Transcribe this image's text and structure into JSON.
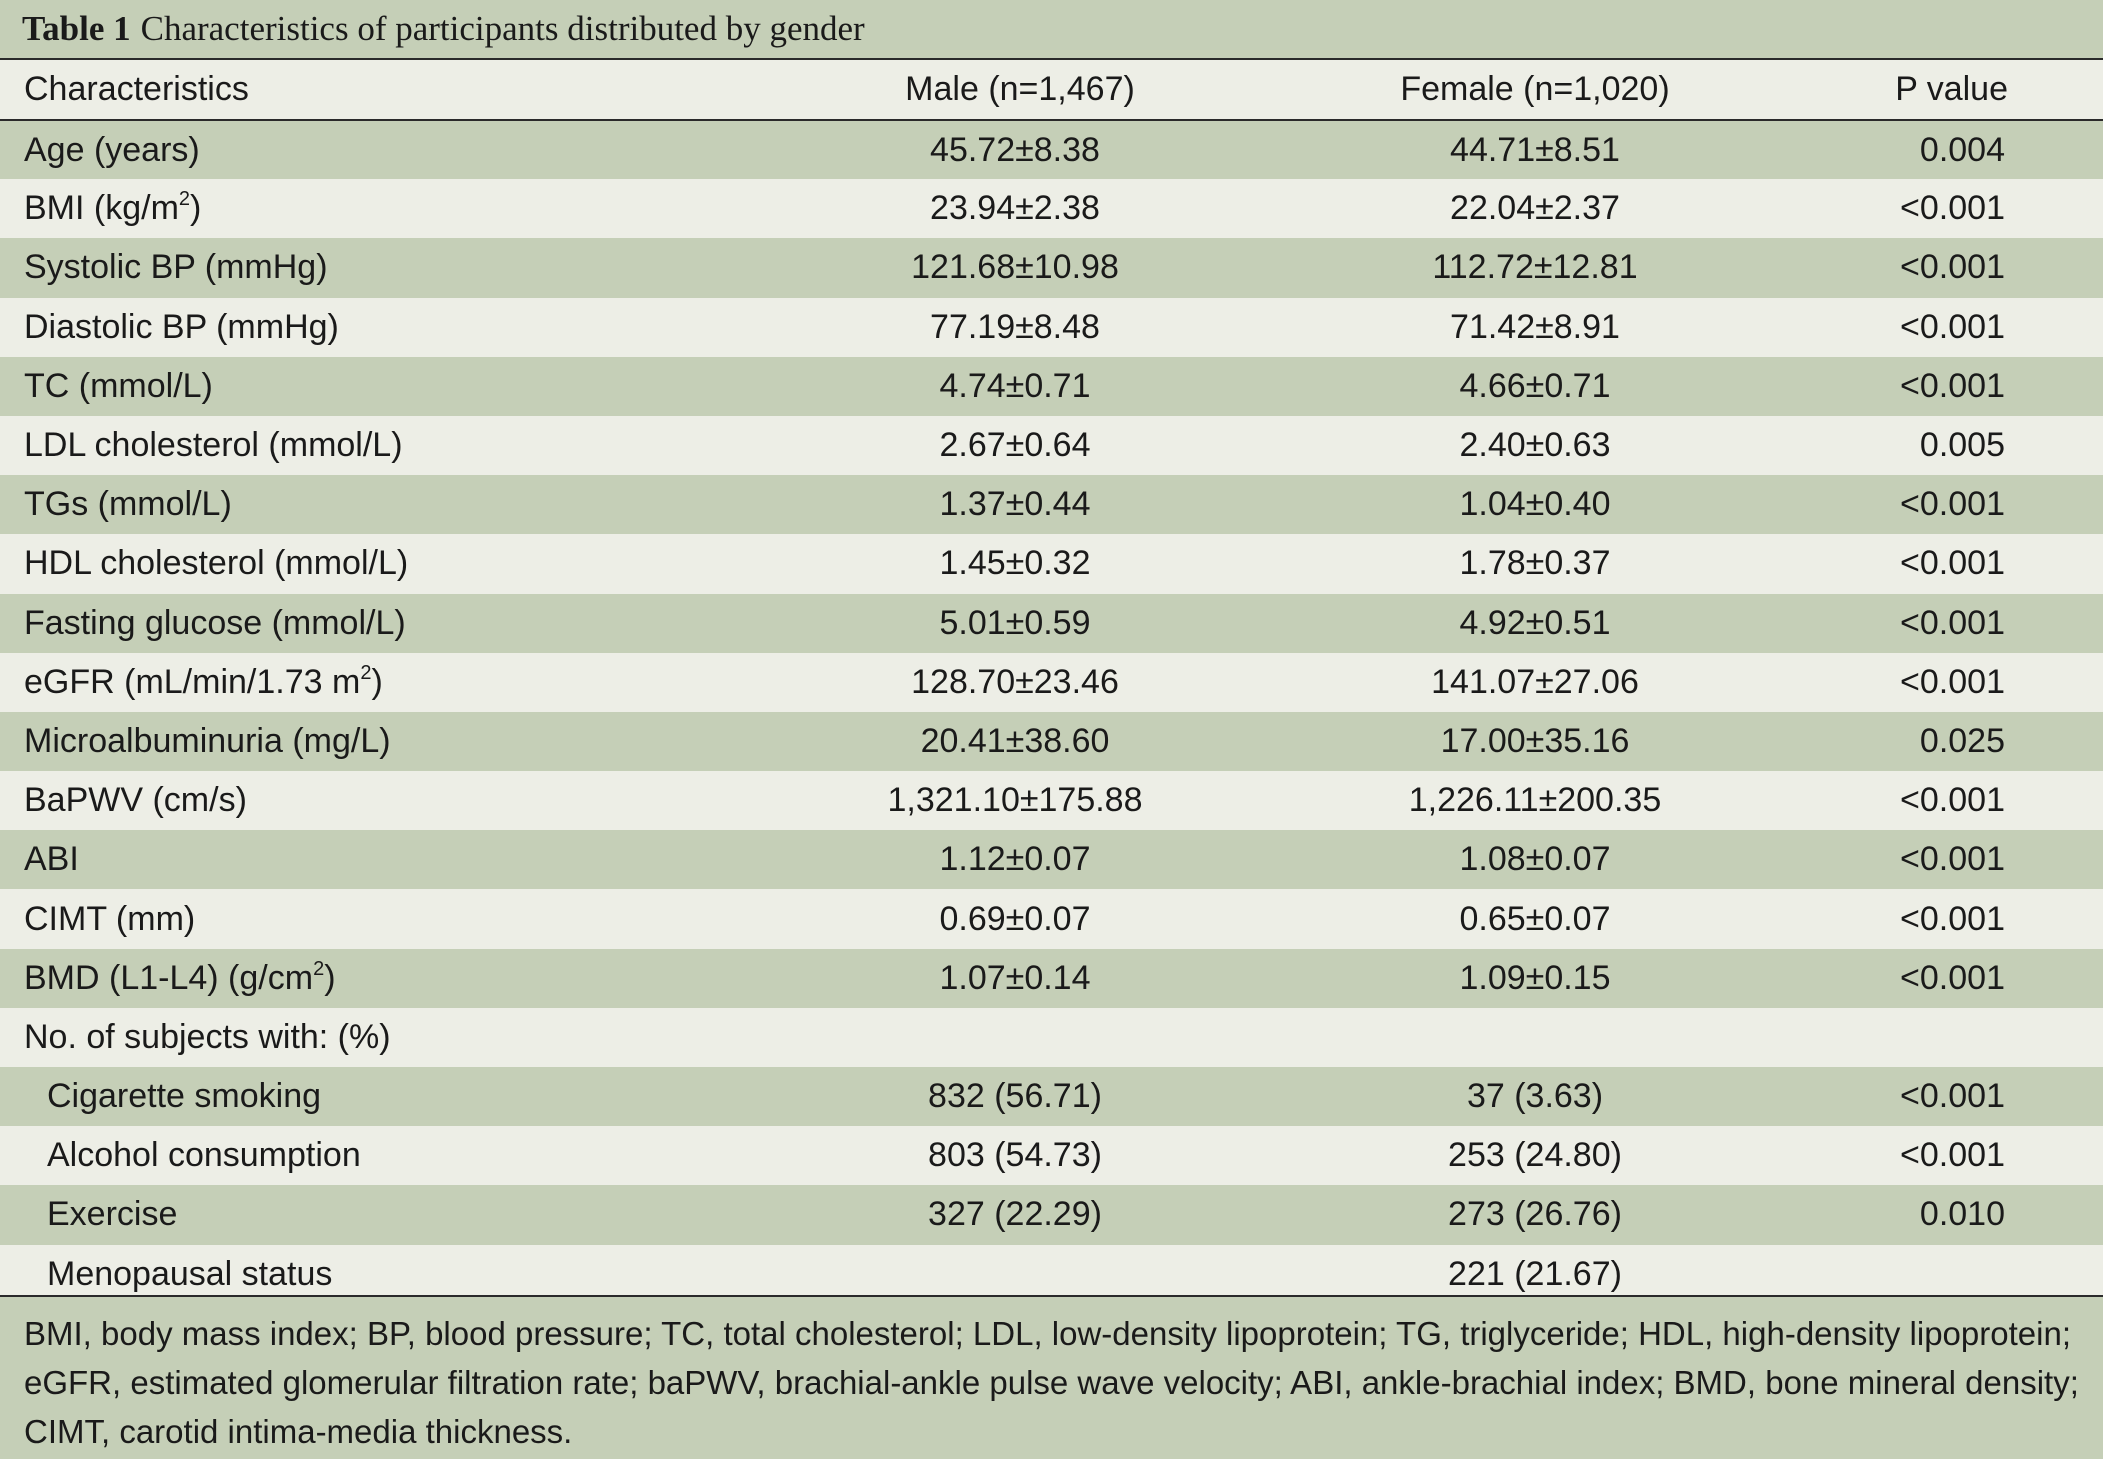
{
  "caption": {
    "label": "Table 1",
    "title": "Characteristics of participants distributed by gender"
  },
  "columns": {
    "characteristics": "Characteristics",
    "male": "Male (n=1,467)",
    "female": "Female (n=1,020)",
    "p_value": "P value"
  },
  "rows": [
    {
      "name": "Age (years)",
      "male": "45.72±8.38",
      "female": "44.71±8.51",
      "p": "0.004"
    },
    {
      "name": "BMI (kg/m",
      "sup": "2",
      "tail": ")",
      "male": "23.94±2.38",
      "female": "22.04±2.37",
      "p": "<0.001"
    },
    {
      "name": "Systolic BP (mmHg)",
      "male": "121.68±10.98",
      "female": "112.72±12.81",
      "p": "<0.001"
    },
    {
      "name": "Diastolic BP (mmHg)",
      "male": "77.19±8.48",
      "female": "71.42±8.91",
      "p": "<0.001"
    },
    {
      "name": "TC (mmol/L)",
      "male": "4.74±0.71",
      "female": "4.66±0.71",
      "p": "<0.001"
    },
    {
      "name": "LDL cholesterol (mmol/L)",
      "male": "2.67±0.64",
      "female": "2.40±0.63",
      "p": "0.005"
    },
    {
      "name": "TGs (mmol/L)",
      "male": "1.37±0.44",
      "female": "1.04±0.40",
      "p": "<0.001"
    },
    {
      "name": "HDL cholesterol (mmol/L)",
      "male": "1.45±0.32",
      "female": "1.78±0.37",
      "p": "<0.001"
    },
    {
      "name": "Fasting glucose (mmol/L)",
      "male": "5.01±0.59",
      "female": "4.92±0.51",
      "p": "<0.001"
    },
    {
      "name": "eGFR (mL/min/1.73 m",
      "sup": "2",
      "tail": ")",
      "male": "128.70±23.46",
      "female": "141.07±27.06",
      "p": "<0.001"
    },
    {
      "name": "Microalbuminuria (mg/L)",
      "male": "20.41±38.60",
      "female": "17.00±35.16",
      "p": "0.025"
    },
    {
      "name": "BaPWV (cm/s)",
      "male": "1,321.10±175.88",
      "female": "1,226.11±200.35",
      "p": "<0.001"
    },
    {
      "name": "ABI",
      "male": "1.12±0.07",
      "female": "1.08±0.07",
      "p": "<0.001"
    },
    {
      "name": "CIMT (mm)",
      "male": "0.69±0.07",
      "female": "0.65±0.07",
      "p": "<0.001"
    },
    {
      "name": "BMD (L1-L4) (g/cm",
      "sup": "2",
      "tail": ")",
      "male": "1.07±0.14",
      "female": "1.09±0.15",
      "p": "<0.001"
    },
    {
      "name": "No. of subjects with: (%)",
      "male": "",
      "female": "",
      "p": ""
    },
    {
      "name": "Cigarette smoking",
      "indent": true,
      "male": "832 (56.71)",
      "female": "37 (3.63)",
      "p": "<0.001"
    },
    {
      "name": "Alcohol consumption",
      "indent": true,
      "male": "803 (54.73)",
      "female": "253 (24.80)",
      "p": "<0.001"
    },
    {
      "name": "Exercise",
      "indent": true,
      "male": "327 (22.29)",
      "female": "273 (26.76)",
      "p": "0.010"
    },
    {
      "name": "Menopausal status",
      "indent": true,
      "male": "",
      "female": "221 (21.67)",
      "p": ""
    }
  ],
  "footnote": "BMI, body mass index; BP, blood pressure; TC, total cholesterol; LDL, low-density lipoprotein; TG, triglyceride; HDL, high-density lipoprotein; eGFR, estimated glomerular filtration rate; baPWV, brachial-ankle pulse wave velocity; ABI, ankle-brachial index; BMD, bone mineral density; CIMT, carotid intima-media thickness."
}
